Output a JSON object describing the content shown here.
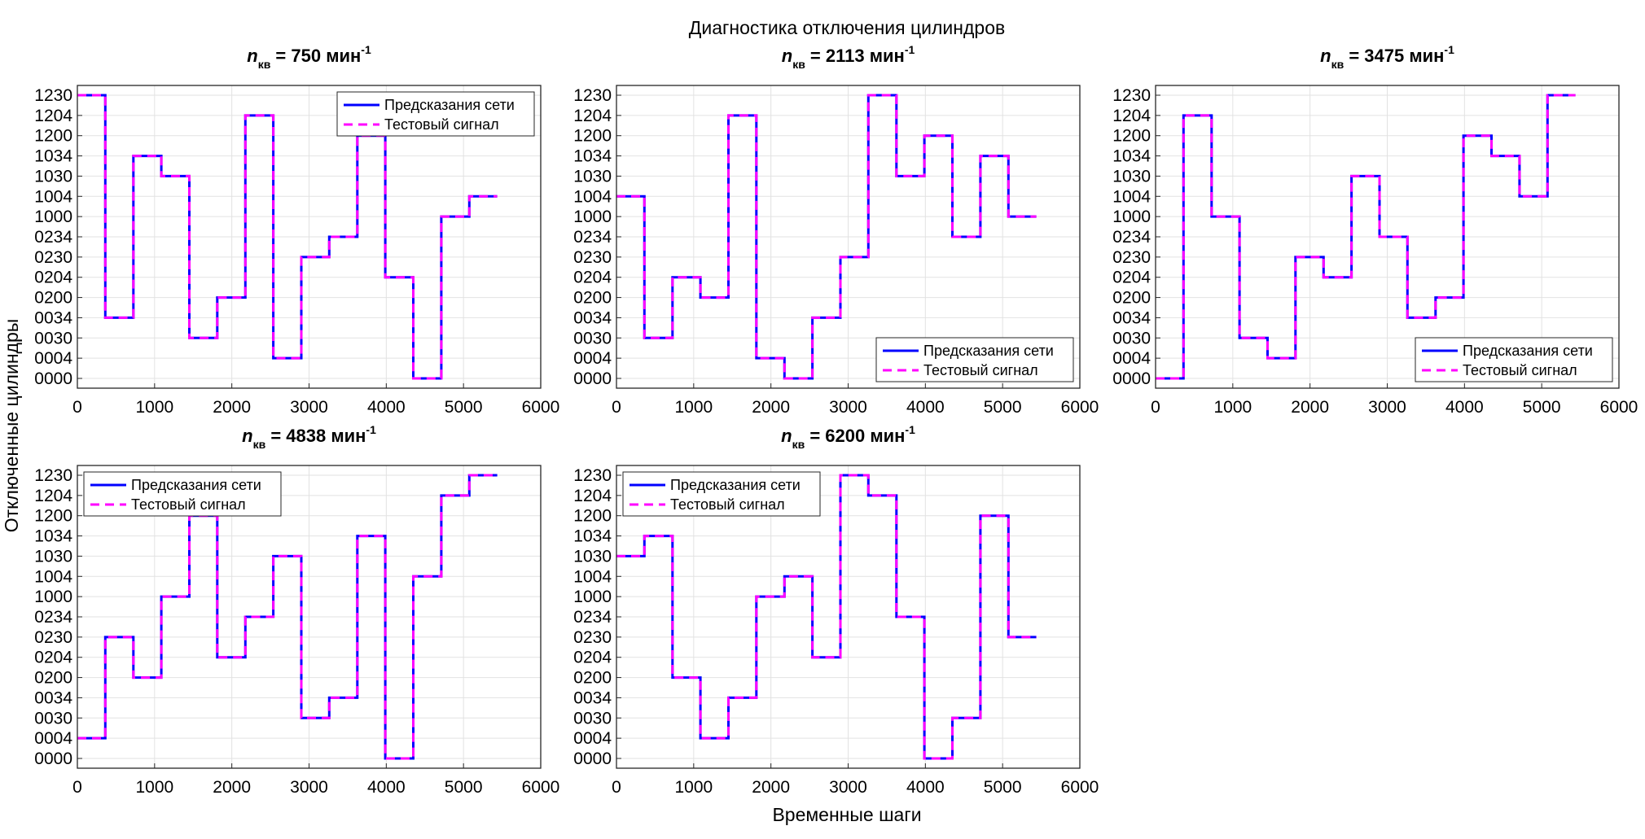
{
  "figure": {
    "title": "Диагностика отключения цилиндров",
    "xlabel": "Временные шаги",
    "ylabel": "Отключенные цилиндры"
  },
  "colors": {
    "prediction": "#0000FF",
    "test": "#FF00FF",
    "grid": "#e2e2e2",
    "axes": "#262626"
  },
  "chart_data": [
    {
      "type": "line",
      "title": {
        "var": "n",
        "sub": "кв",
        "value": "750",
        "unit": "мин",
        "exp": "-1"
      },
      "x": [
        0,
        362,
        725,
        1087,
        1450,
        1812,
        2175,
        2537,
        2900,
        3262,
        3625,
        3987,
        4350,
        4712,
        5075,
        5437
      ],
      "y_index": [
        14,
        3,
        11,
        10,
        2,
        4,
        13,
        1,
        6,
        7,
        12,
        5,
        0,
        8,
        9,
        9
      ],
      "xlim": [
        0,
        6000
      ],
      "ytick_labels": [
        "0000",
        "0004",
        "0030",
        "0034",
        "0200",
        "0204",
        "0230",
        "0234",
        "1000",
        "1004",
        "1030",
        "1034",
        "1200",
        "1204",
        "1230"
      ],
      "legend": "top-right",
      "series": [
        {
          "name": "Предсказания сети"
        },
        {
          "name": "Тестовый сигнал"
        }
      ]
    },
    {
      "type": "line",
      "title": {
        "var": "n",
        "sub": "кв",
        "value": "2113",
        "unit": "мин",
        "exp": "-1"
      },
      "x": [
        0,
        362,
        725,
        1087,
        1450,
        1812,
        2175,
        2537,
        2900,
        3262,
        3625,
        3987,
        4350,
        4712,
        5075,
        5437
      ],
      "y_index": [
        9,
        2,
        5,
        4,
        13,
        1,
        0,
        3,
        6,
        14,
        10,
        12,
        7,
        11,
        8,
        8
      ],
      "xlim": [
        0,
        6000
      ],
      "ytick_labels": [
        "0000",
        "0004",
        "0030",
        "0034",
        "0200",
        "0204",
        "0230",
        "0234",
        "1000",
        "1004",
        "1030",
        "1034",
        "1200",
        "1204",
        "1230"
      ],
      "legend": "bottom-right",
      "series": [
        {
          "name": "Предсказания сети"
        },
        {
          "name": "Тестовый сигнал"
        }
      ]
    },
    {
      "type": "line",
      "title": {
        "var": "n",
        "sub": "кв",
        "value": "3475",
        "unit": "мин",
        "exp": "-1"
      },
      "x": [
        0,
        362,
        725,
        1087,
        1450,
        1812,
        2175,
        2537,
        2900,
        3262,
        3625,
        3987,
        4350,
        4712,
        5075,
        5437
      ],
      "y_index": [
        0,
        13,
        8,
        2,
        1,
        6,
        5,
        10,
        7,
        3,
        4,
        12,
        11,
        9,
        14,
        14
      ],
      "xlim": [
        0,
        6000
      ],
      "ytick_labels": [
        "0000",
        "0004",
        "0030",
        "0034",
        "0200",
        "0204",
        "0230",
        "0234",
        "1000",
        "1004",
        "1030",
        "1034",
        "1200",
        "1204",
        "1230"
      ],
      "legend": "bottom-right",
      "series": [
        {
          "name": "Предсказания сети"
        },
        {
          "name": "Тестовый сигнал"
        }
      ]
    },
    {
      "type": "line",
      "title": {
        "var": "n",
        "sub": "кв",
        "value": "4838",
        "unit": "мин",
        "exp": "-1"
      },
      "x": [
        0,
        362,
        725,
        1087,
        1450,
        1812,
        2175,
        2537,
        2900,
        3262,
        3625,
        3987,
        4350,
        4712,
        5075,
        5437
      ],
      "y_index": [
        1,
        6,
        4,
        8,
        12,
        5,
        7,
        10,
        2,
        3,
        11,
        0,
        9,
        13,
        14,
        14
      ],
      "xlim": [
        0,
        6000
      ],
      "ytick_labels": [
        "0000",
        "0004",
        "0030",
        "0034",
        "0200",
        "0204",
        "0230",
        "0234",
        "1000",
        "1004",
        "1030",
        "1034",
        "1200",
        "1204",
        "1230"
      ],
      "legend": "top-left",
      "series": [
        {
          "name": "Предсказания сети"
        },
        {
          "name": "Тестовый сигнал"
        }
      ]
    },
    {
      "type": "line",
      "title": {
        "var": "n",
        "sub": "кв",
        "value": "6200",
        "unit": "мин",
        "exp": "-1"
      },
      "x": [
        0,
        362,
        725,
        1087,
        1450,
        1812,
        2175,
        2537,
        2900,
        3262,
        3625,
        3987,
        4350,
        4712,
        5075,
        5437
      ],
      "y_index": [
        10,
        11,
        4,
        1,
        3,
        8,
        9,
        5,
        14,
        13,
        7,
        0,
        2,
        12,
        6,
        6
      ],
      "xlim": [
        0,
        6000
      ],
      "ytick_labels": [
        "0000",
        "0004",
        "0030",
        "0034",
        "0200",
        "0204",
        "0230",
        "0234",
        "1000",
        "1004",
        "1030",
        "1034",
        "1200",
        "1204",
        "1230"
      ],
      "legend": "top-left",
      "series": [
        {
          "name": "Предсказания сети"
        },
        {
          "name": "Тестовый сигнал"
        }
      ]
    }
  ]
}
